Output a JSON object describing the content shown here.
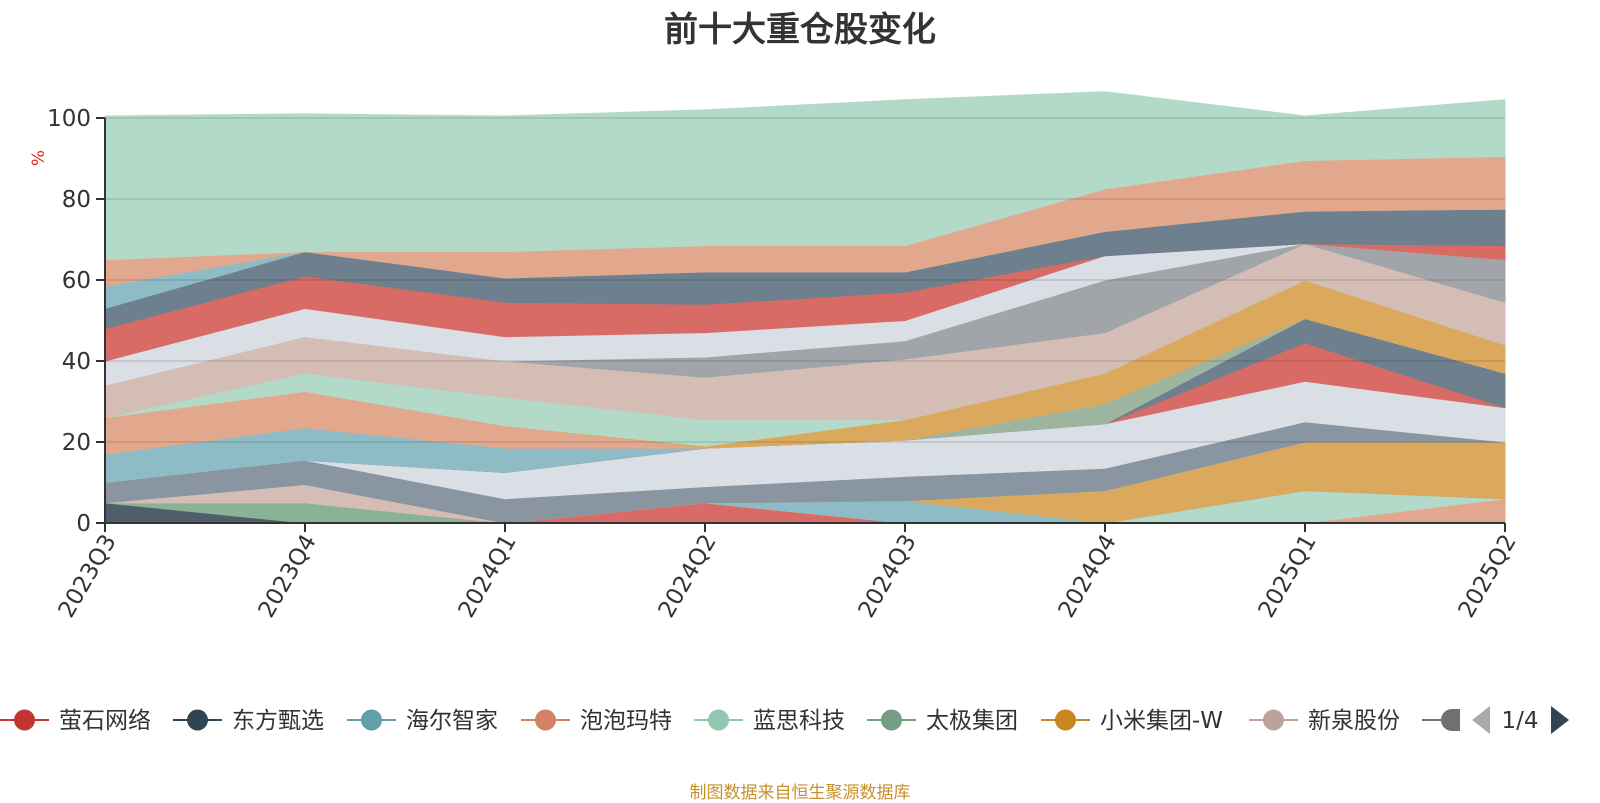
{
  "page": {
    "title": "前十大重仓股变化",
    "source_note": "制图数据来自恒生聚源数据库"
  },
  "chart_data": {
    "type": "area",
    "stacked": true,
    "title": "前十大重仓股变化",
    "ylabel": "%",
    "ylim": [
      0,
      100
    ],
    "yticks": [
      0,
      20,
      40,
      60,
      80,
      100
    ],
    "grid": true,
    "categories": [
      "2023Q3",
      "2023Q4",
      "2024Q1",
      "2024Q2",
      "2024Q3",
      "2024Q4",
      "2025Q1",
      "2025Q2"
    ],
    "layers": [
      {
        "color": "#4f5e6d",
        "values": [
          5,
          0,
          0,
          0,
          0,
          0,
          0,
          0
        ]
      },
      {
        "color": "#8ab294",
        "values": [
          0,
          5,
          0,
          0,
          0,
          0,
          0,
          0
        ]
      },
      {
        "color": "#d96b66",
        "values": [
          0,
          0,
          0,
          5,
          0,
          0,
          0,
          0
        ]
      },
      {
        "color": "#e2a88e",
        "values": [
          0,
          0,
          0,
          0,
          0,
          0,
          0,
          6
        ]
      },
      {
        "color": "#b3dac8",
        "values": [
          0,
          0,
          0,
          0,
          0,
          0,
          8,
          0
        ]
      },
      {
        "color": "#8ebcc6",
        "values": [
          0,
          0,
          0,
          0,
          5.5,
          0,
          0,
          0
        ]
      },
      {
        "color": "#dba95e",
        "values": [
          0,
          0,
          0,
          0,
          0,
          8,
          12,
          14
        ]
      },
      {
        "color": "#d4bdb5",
        "values": [
          0,
          4.5,
          0,
          0,
          0,
          0,
          0,
          0
        ]
      },
      {
        "color": "#8995a0",
        "values": [
          5,
          6,
          6,
          4,
          6,
          5.5,
          5,
          0
        ]
      },
      {
        "color": "#dadee5",
        "values": [
          0,
          0,
          6.5,
          9.5,
          9,
          11,
          10,
          8.5
        ]
      },
      {
        "color": "#d96b66",
        "values": [
          0,
          0,
          0,
          0,
          0,
          0,
          9.5,
          0
        ]
      },
      {
        "color": "#6e808d",
        "values": [
          0,
          0,
          0,
          0,
          0,
          0,
          6,
          8.5
        ]
      },
      {
        "color": "#8ebcc6",
        "values": [
          7,
          8,
          6,
          0,
          0,
          0,
          0,
          0
        ]
      },
      {
        "color": "#9db59f",
        "values": [
          0,
          0,
          0,
          0,
          0,
          5,
          0,
          0
        ]
      },
      {
        "color": "#e2a88e",
        "values": [
          9,
          9,
          5.5,
          0,
          0,
          0,
          0,
          0
        ]
      },
      {
        "color": "#dba95e",
        "values": [
          0,
          0,
          0,
          0.5,
          5,
          7.5,
          9.5,
          7
        ]
      },
      {
        "color": "#b3dac8",
        "values": [
          0,
          4.5,
          7,
          6.5,
          0,
          0,
          0,
          0
        ]
      },
      {
        "color": "#d4bdb5",
        "values": [
          8,
          9,
          9,
          10.5,
          15,
          10,
          9,
          10.5
        ]
      },
      {
        "color": "#a1a5a9",
        "values": [
          0,
          0,
          0,
          5,
          4.5,
          13,
          0,
          10.5
        ]
      },
      {
        "color": "#dadee5",
        "values": [
          6,
          7,
          6,
          6,
          5,
          6,
          0,
          0
        ]
      },
      {
        "color": "#d96b66",
        "values": [
          8,
          8,
          8.5,
          7,
          7,
          0,
          0,
          3.5
        ]
      },
      {
        "color": "#6e808d",
        "values": [
          5,
          6,
          6,
          8,
          5,
          6,
          8,
          9
        ]
      },
      {
        "color": "#8ebcc6",
        "values": [
          5.5,
          0,
          0,
          0,
          0,
          0,
          0,
          0
        ]
      },
      {
        "color": "#e2a88e",
        "values": [
          6.5,
          0,
          6.5,
          6.5,
          6.5,
          10.5,
          12.5,
          13
        ]
      },
      {
        "color": "#b3dac8",
        "values": [
          35.5,
          34,
          33.5,
          33.5,
          36,
          24,
          11,
          14
        ]
      }
    ],
    "legend": {
      "position": "bottom",
      "items": [
        {
          "name": "萤石网络",
          "color": "#c23531"
        },
        {
          "name": "东方甄选",
          "color": "#2f4554"
        },
        {
          "name": "海尔智家",
          "color": "#61a0a8"
        },
        {
          "name": "泡泡玛特",
          "color": "#d48265"
        },
        {
          "name": "蓝思科技",
          "color": "#91c7ae"
        },
        {
          "name": "太极集团",
          "color": "#749f83"
        },
        {
          "name": "小米集团-W",
          "color": "#ca8622"
        },
        {
          "name": "新泉股份",
          "color": "#bda29a"
        }
      ],
      "partial_item_color": "#6e7074",
      "page_indicator": "1/4"
    }
  }
}
